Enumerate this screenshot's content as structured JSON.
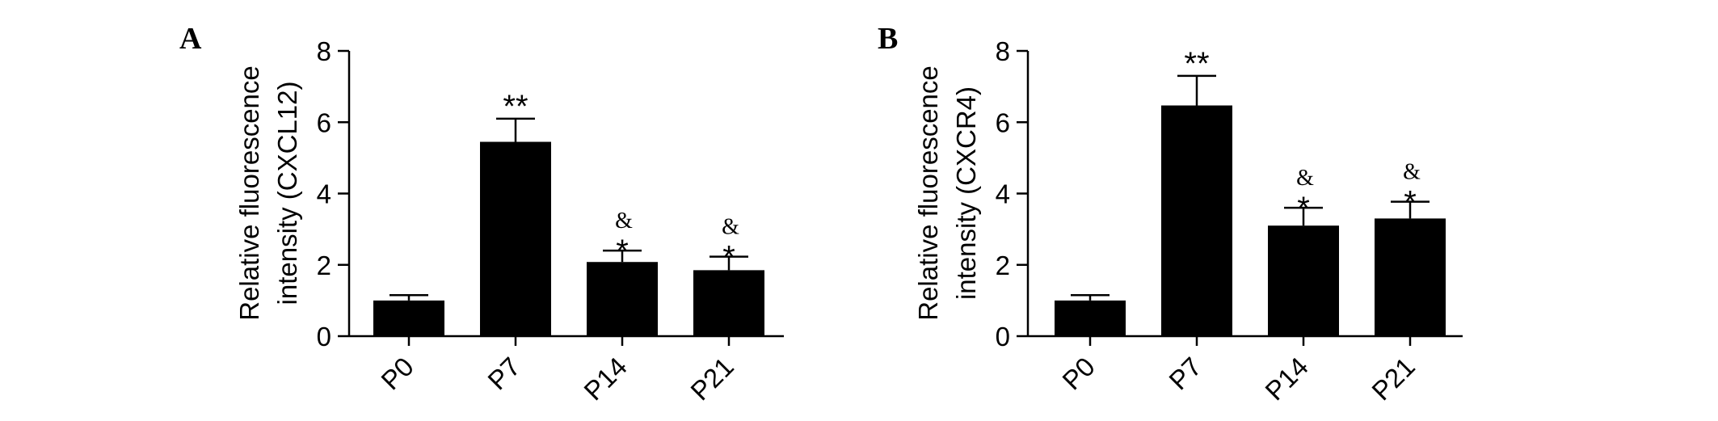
{
  "chart_data": [
    {
      "type": "bar",
      "panel_label": "A",
      "categories": [
        "P0",
        "P7",
        "P14",
        "P21"
      ],
      "values": [
        1.0,
        5.45,
        2.08,
        1.85
      ],
      "errors": [
        0.15,
        0.65,
        0.32,
        0.38
      ],
      "annotations": [
        "",
        "**",
        "&\n*",
        "&\n*"
      ],
      "ylabel_lines": [
        "Relative fluorescence",
        "intensity (CXCL12)"
      ],
      "ylim": [
        0,
        8
      ],
      "yticks": [
        0,
        2,
        4,
        6,
        8
      ],
      "bar_color": "#000000",
      "grid": false
    },
    {
      "type": "bar",
      "panel_label": "B",
      "categories": [
        "P0",
        "P7",
        "P14",
        "P21"
      ],
      "values": [
        1.0,
        6.47,
        3.1,
        3.3
      ],
      "errors": [
        0.15,
        0.83,
        0.5,
        0.47
      ],
      "annotations": [
        "",
        "**",
        "&\n*",
        "&\n*"
      ],
      "ylabel_lines": [
        "Relative fluorescence",
        "intensity (CXCR4)"
      ],
      "ylim": [
        0,
        8
      ],
      "yticks": [
        0,
        2,
        4,
        6,
        8
      ],
      "bar_color": "#000000",
      "grid": false
    }
  ]
}
